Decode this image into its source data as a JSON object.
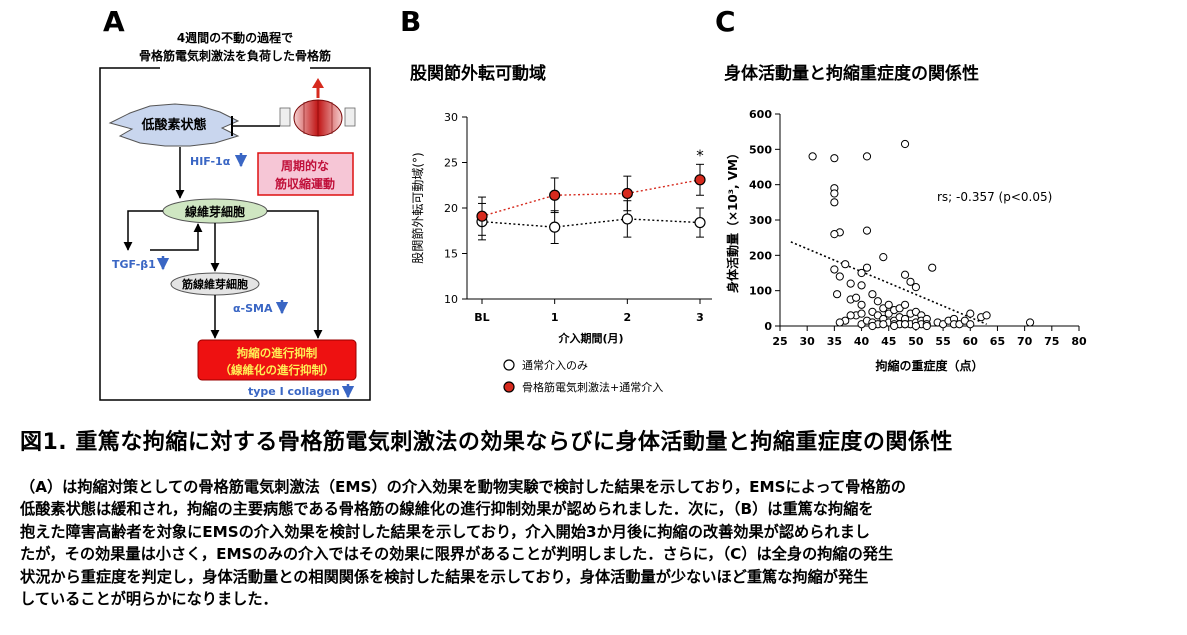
{
  "panelA": {
    "letter": "A",
    "frame_title_1": "4週間の不動の過程で",
    "frame_title_2": "骨格筋電気刺激法を負荷した骨格筋",
    "hypoxia": "低酸素状態",
    "hif": "HIF-1α",
    "periodic_1": "周期的な",
    "periodic_2": "筋収縮運動",
    "fibroblast": "線維芽細胞",
    "tgf": "TGF-β1",
    "myofibroblast": "筋線維芽細胞",
    "sma": "α-SMA",
    "result_1": "拘縮の進行抑制",
    "result_2": "（線維化の進行抑制）",
    "collagen": "type I collagen"
  },
  "panelB": {
    "letter": "B",
    "title": "股関節外転可動域"
  },
  "panelC": {
    "letter": "C",
    "title": "身体活動量と拘縮重症度の関係性",
    "annotation": "rs; -0.357 (p<0.05)"
  },
  "caption": {
    "title": "図1. 重篤な拘縮に対する骨格筋電気刺激法の効果ならびに身体活動量と拘縮重症度の関係性",
    "lines": [
      "（A）は拘縮対策としての骨格筋電気刺激法（EMS）の介入効果を動物実験で検討した結果を示しており，EMSによって骨格筋の",
      "低酸素状態は緩和され，拘縮の主要病態である骨格筋の線維化の進行抑制効果が認められました．次に，（B）は重篤な拘縮を",
      "抱えた障害高齢者を対象にEMSの介入効果を検討した結果を示しており，介入開始3か月後に拘縮の改善効果が認められまし",
      "たが，その効果量は小さく，EMSのみの介入ではその効果に限界があることが判明しました．さらに，（C）は全身の拘縮の発生",
      "状況から重症度を判定し，身体活動量との相関関係を検討した結果を示しており，身体活動量が少ないほど重篤な拘縮が発生",
      "していることが明らかになりました．"
    ]
  },
  "colors": {
    "red_series": "#d62a1e",
    "result_box": "#ee1111",
    "pink_box": "#f6c6d6",
    "arrow_blue": "#3a66c4"
  },
  "chart_data": [
    {
      "type": "line",
      "title": "股関節外転可動域",
      "xlabel": "介入期間(月)",
      "ylabel": "股関節外転可動域(°)",
      "categories": [
        "BL",
        "1",
        "2",
        "3"
      ],
      "ylim": [
        10,
        30
      ],
      "yticks": [
        "10",
        "15",
        "20",
        "25",
        "30"
      ],
      "series": [
        {
          "name": "通常介入のみ",
          "values": [
            18.5,
            17.9,
            18.8,
            18.4
          ],
          "errors": [
            2.0,
            1.8,
            2.0,
            1.6
          ],
          "marker": "open"
        },
        {
          "name": "骨格筋電気刺激法+通常介入",
          "values": [
            19.1,
            21.4,
            21.6,
            23.1
          ],
          "errors": [
            2.1,
            1.9,
            1.9,
            1.7
          ],
          "marker": "filled"
        }
      ],
      "significance": "*"
    },
    {
      "type": "scatter",
      "title": "身体活動量と拘縮重症度の関係性",
      "xlabel": "拘縮の重症度（点）",
      "ylabel": "身体活動量（×10³, VM）",
      "xlim": [
        25,
        80
      ],
      "ylim": [
        0,
        600
      ],
      "xticks": [
        "25",
        "30",
        "35",
        "40",
        "45",
        "50",
        "55",
        "60",
        "65",
        "70",
        "75",
        "80"
      ],
      "yticks": [
        "0",
        "100",
        "200",
        "300",
        "400",
        "500",
        "600"
      ],
      "x": [
        31,
        35,
        35,
        35,
        35,
        36,
        35,
        35,
        35.5,
        36,
        37,
        37,
        38,
        38,
        39,
        39,
        40,
        40,
        40,
        40,
        41,
        41,
        41,
        41,
        42,
        42,
        42,
        43,
        43,
        43,
        44,
        44,
        44,
        45,
        45,
        45,
        46,
        46,
        46,
        47,
        47,
        47,
        48,
        48,
        48,
        48,
        48,
        49,
        49,
        49,
        50,
        50,
        50,
        51,
        51,
        51,
        52,
        52,
        53,
        54,
        55,
        56,
        57,
        57,
        58,
        59,
        60,
        60,
        62,
        63,
        71,
        42,
        44,
        46,
        48,
        50,
        52,
        38,
        36,
        40
      ],
      "y": [
        480,
        475,
        390,
        375,
        350,
        265,
        260,
        160,
        90,
        140,
        175,
        15,
        120,
        75,
        80,
        30,
        115,
        60,
        35,
        5,
        480,
        270,
        165,
        15,
        90,
        40,
        10,
        70,
        30,
        5,
        195,
        50,
        20,
        60,
        35,
        10,
        45,
        15,
        5,
        25,
        50,
        5,
        515,
        145,
        60,
        20,
        5,
        125,
        35,
        5,
        110,
        40,
        10,
        30,
        15,
        5,
        20,
        5,
        165,
        10,
        5,
        15,
        20,
        5,
        5,
        15,
        35,
        5,
        25,
        30,
        10,
        0,
        5,
        0,
        5,
        0,
        0,
        30,
        10,
        150
      ],
      "trend": {
        "x": [
          27,
          63
        ],
        "y": [
          238,
          5
        ]
      }
    }
  ]
}
